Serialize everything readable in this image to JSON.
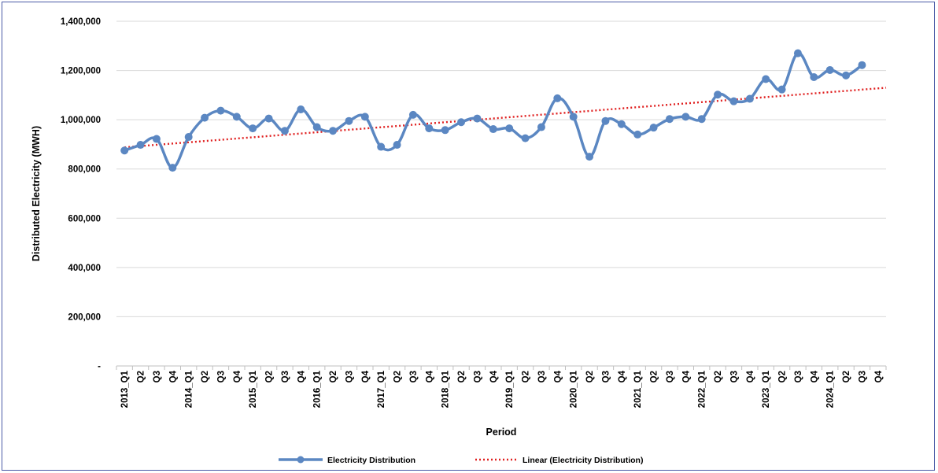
{
  "chart_data": {
    "type": "line",
    "xlabel": "Period",
    "ylabel": "Distributed Electricity (MWH)",
    "ylim": [
      0,
      1400000
    ],
    "yticks": [
      0,
      200000,
      400000,
      600000,
      800000,
      1000000,
      1200000,
      1400000
    ],
    "ytick_labels": [
      "-",
      "200,000",
      "400,000",
      "600,000",
      "800,000",
      "1,000,000",
      "1,200,000",
      "1,400,000"
    ],
    "grid": "horizontal",
    "legend_position": "bottom",
    "colors": {
      "series": "#5b87c2",
      "trend": "#e02020",
      "grid": "#d9d9d9",
      "frame": "#4a5aa6"
    },
    "categories": [
      "2013_Q1",
      "Q2",
      "Q3",
      "Q4",
      "2014_Q1",
      "Q2",
      "Q3",
      "Q4",
      "2015_Q1",
      "Q2",
      "Q3",
      "Q4",
      "2016_Q1",
      "Q2",
      "Q3",
      "Q4",
      "2017_Q1",
      "Q2",
      "Q3",
      "Q4",
      "2018_Q1",
      "Q2",
      "Q3",
      "Q4",
      "2019_Q1",
      "Q2",
      "Q3",
      "Q4",
      "2020_Q1",
      "Q2",
      "Q3",
      "Q4",
      "2021_Q1",
      "Q2",
      "Q3",
      "Q4",
      "2022_Q1",
      "Q2",
      "Q3",
      "Q4",
      "2023_Q1",
      "Q2",
      "Q3",
      "Q4",
      "2024_Q1",
      "Q2",
      "Q3",
      "Q4"
    ],
    "series": [
      {
        "name": "Electricity Distribution",
        "values": [
          875000,
          898000,
          922000,
          805000,
          930000,
          1008000,
          1037000,
          1012000,
          965000,
          1005000,
          955000,
          1042000,
          970000,
          955000,
          995000,
          1012000,
          890000,
          898000,
          1020000,
          965000,
          958000,
          990000,
          1005000,
          962000,
          965000,
          925000,
          970000,
          1087000,
          1012000,
          850000,
          995000,
          982000,
          940000,
          968000,
          1003000,
          1012000,
          1003000,
          1102000,
          1075000,
          1085000,
          1165000,
          1123000,
          1270000,
          1173000,
          1202000,
          1180000,
          1222000,
          null
        ]
      },
      {
        "name": "Linear (Electricity Distribution)",
        "type": "linear-trend",
        "values_endpoints": [
          888000,
          1130000
        ]
      }
    ]
  }
}
